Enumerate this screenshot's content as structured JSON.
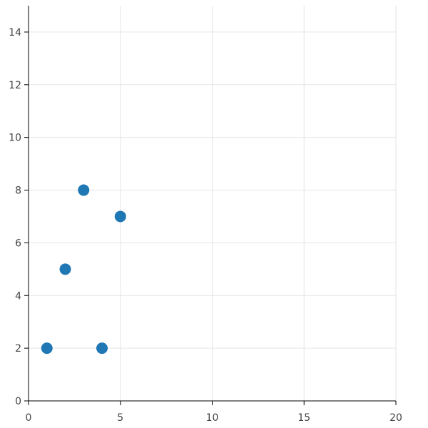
{
  "chart_data": {
    "type": "scatter",
    "x": [
      1,
      2,
      3,
      4,
      5
    ],
    "values": [
      2,
      5,
      8,
      2,
      7
    ],
    "color": "#1f77b4",
    "xlim": [
      0,
      20
    ],
    "xticks": [
      0,
      5,
      10,
      15,
      20
    ],
    "ylim": [
      0,
      15
    ],
    "yticks": [
      0,
      2,
      4,
      6,
      8,
      10,
      12,
      14
    ],
    "grid": true
  }
}
